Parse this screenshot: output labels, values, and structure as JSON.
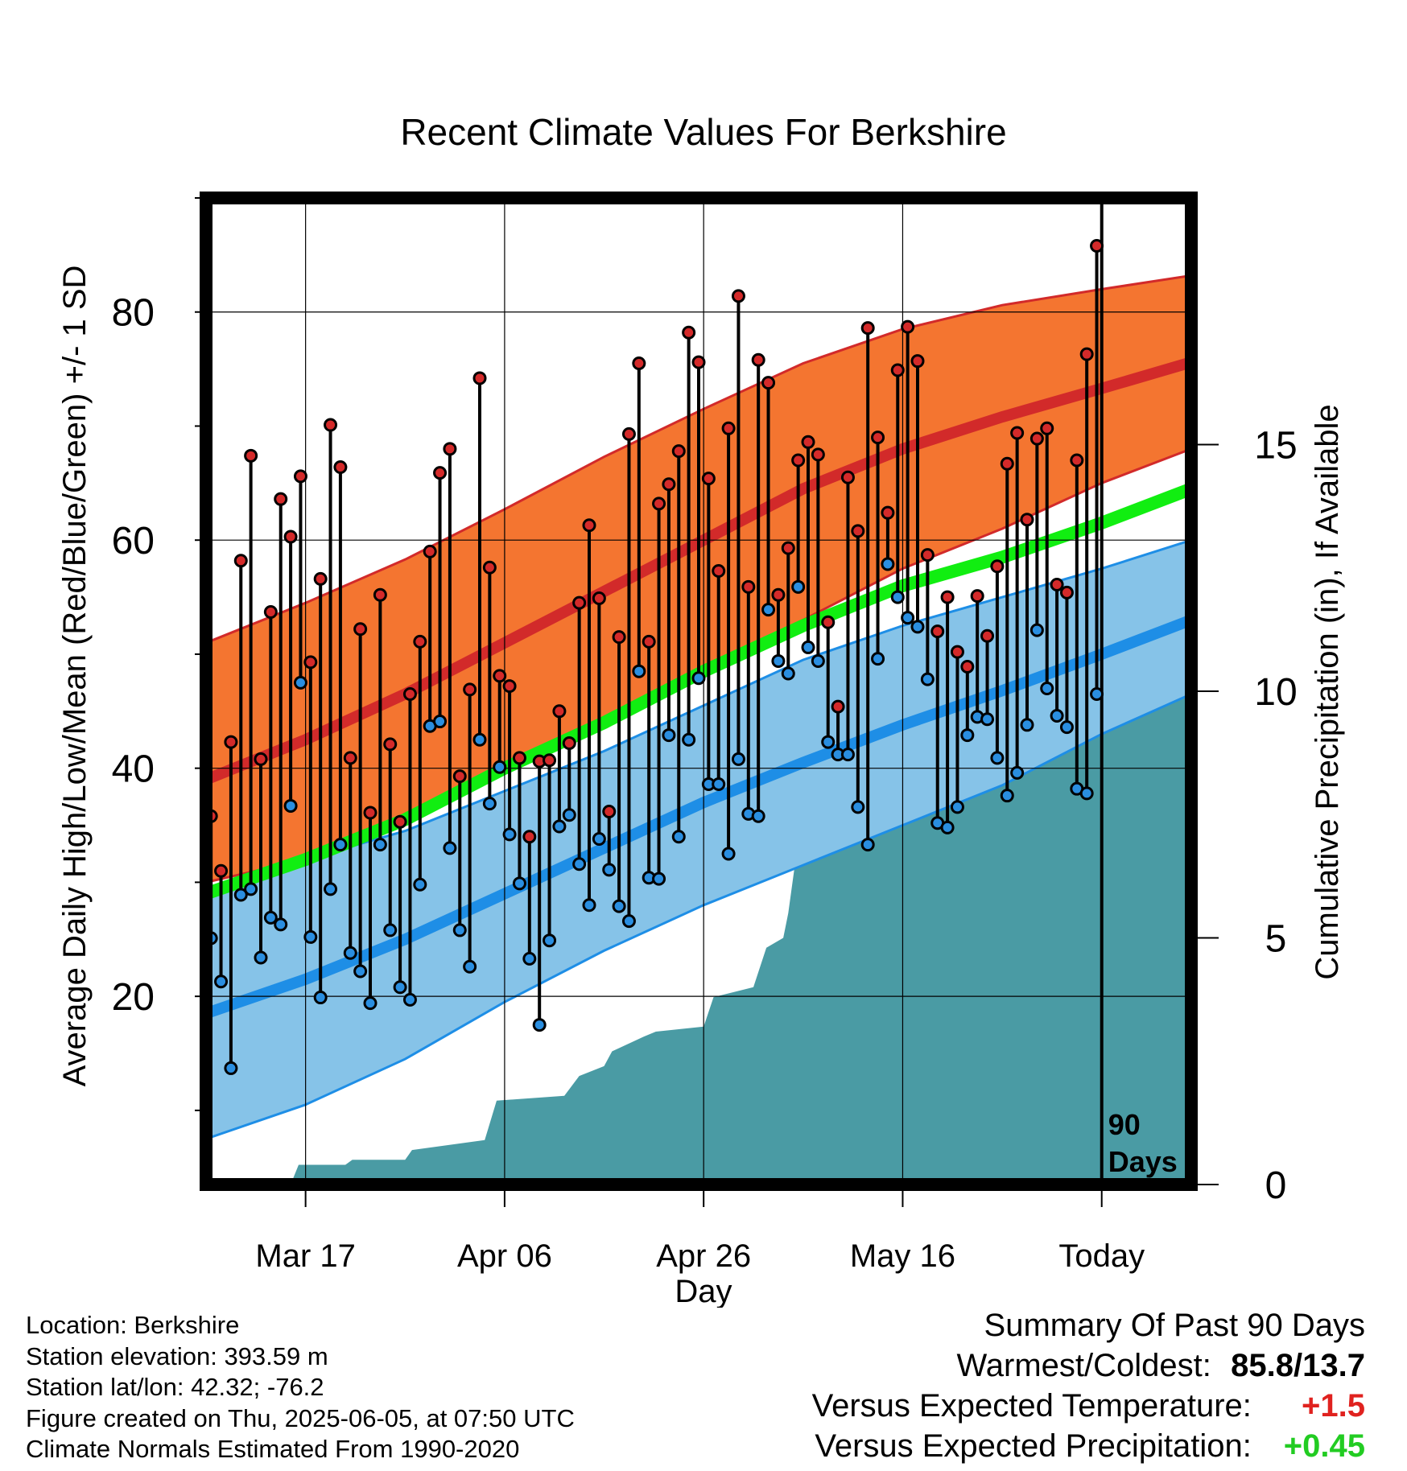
{
  "title": "Recent Climate Values For Berkshire",
  "colors": {
    "high_band": "#f47530",
    "high_mean": "#d22a2a",
    "low_band": "#86c3e8",
    "low_mean": "#1e8ee6",
    "mean_line": "#11ee11",
    "precip": "#4a9ba4",
    "high_marker": "#d42a2a",
    "low_marker": "#2a8ee0"
  },
  "chart_data": {
    "type": "line",
    "title": "Recent Climate Values For Berkshire",
    "xlabel": "Day",
    "ylabel": "Average Daily High/Low/Mean (Red/Blue/Green) +/- 1 SD",
    "y2label": "Cumulative Precipitation (in), If Available",
    "x_tick_labels": [
      "Mar 17",
      "Apr 06",
      "Apr 26",
      "May 16",
      "Today"
    ],
    "x_tick_days": [
      10,
      30,
      50,
      70,
      90
    ],
    "xlim": [
      0,
      99
    ],
    "ylim": [
      3.5,
      90
    ],
    "y_ticks": [
      20,
      40,
      60,
      80
    ],
    "y2lim": [
      0,
      20
    ],
    "y2_ticks": [
      0,
      5,
      10,
      15
    ],
    "today_day": 90,
    "today_label": [
      "90",
      "Days"
    ],
    "normals": {
      "day": [
        0,
        10,
        20,
        30,
        40,
        50,
        60,
        70,
        80,
        90,
        99
      ],
      "high_mean": [
        39.0,
        42.5,
        46.5,
        51.0,
        55.5,
        60.0,
        64.5,
        68.0,
        70.8,
        73.3,
        75.6
      ],
      "high_sd_upper": [
        51.0,
        54.5,
        58.3,
        62.7,
        67.3,
        71.5,
        75.5,
        78.5,
        80.6,
        82.0,
        83.2
      ],
      "high_sd_lower": [
        30.0,
        32.0,
        35.5,
        40.0,
        44.0,
        48.5,
        53.0,
        57.5,
        61.0,
        65.0,
        68.0
      ],
      "mean": [
        29.0,
        32.0,
        35.5,
        40.0,
        44.0,
        48.5,
        52.5,
        56.0,
        58.5,
        61.5,
        64.5
      ],
      "low_mean": [
        18.5,
        21.5,
        25.0,
        29.0,
        33.0,
        37.0,
        40.5,
        43.8,
        46.8,
        50.0,
        53.0
      ],
      "low_sd_upper": [
        29.5,
        32.0,
        34.5,
        38.0,
        41.5,
        45.5,
        49.5,
        52.5,
        55.0,
        57.5,
        60.0
      ],
      "low_sd_lower": [
        7.5,
        10.5,
        14.5,
        19.5,
        24.0,
        28.0,
        31.5,
        35.0,
        38.5,
        43.0,
        46.5
      ]
    },
    "daily": {
      "high": [
        35.8,
        31.0,
        42.3,
        58.2,
        67.4,
        40.8,
        53.7,
        63.6,
        60.3,
        65.6,
        49.3,
        56.6,
        70.1,
        66.4,
        40.9,
        52.2,
        36.1,
        55.2,
        42.1,
        35.3,
        46.5,
        51.1,
        59.0,
        65.9,
        68.0,
        39.3,
        46.9,
        74.2,
        57.6,
        48.1,
        47.2,
        40.9,
        34.0,
        40.6,
        40.7,
        45.0,
        42.2,
        54.5,
        61.3,
        54.9,
        36.2,
        51.5,
        69.3,
        75.5,
        51.1,
        63.2,
        64.9,
        67.8,
        78.2,
        75.6,
        65.4,
        57.3,
        69.8,
        81.4,
        55.9,
        75.8,
        73.8,
        55.2,
        59.3,
        67.0,
        68.6,
        67.5,
        52.8,
        45.4,
        65.5,
        60.8,
        78.6,
        69.0,
        62.4,
        74.9,
        78.7,
        75.7,
        58.7,
        52.0,
        55.0,
        50.2,
        48.9,
        55.1,
        51.6,
        57.7,
        66.7,
        69.4,
        61.8,
        68.9,
        69.8,
        56.1,
        55.4,
        67.0,
        76.3,
        85.8
      ],
      "low": [
        25.1,
        21.3,
        13.7,
        28.9,
        29.4,
        23.4,
        26.9,
        26.3,
        36.7,
        47.5,
        25.2,
        19.9,
        29.4,
        33.3,
        23.8,
        22.2,
        19.4,
        33.3,
        25.8,
        20.8,
        19.7,
        29.8,
        43.7,
        44.1,
        33.0,
        25.8,
        22.6,
        42.5,
        36.9,
        40.1,
        34.2,
        29.9,
        23.3,
        17.5,
        24.9,
        34.9,
        35.9,
        31.6,
        28.0,
        33.8,
        31.1,
        27.9,
        26.6,
        48.5,
        30.4,
        30.3,
        42.9,
        34.0,
        42.5,
        47.9,
        38.6,
        38.6,
        32.5,
        40.8,
        36.0,
        35.8,
        53.9,
        49.4,
        48.3,
        55.9,
        50.6,
        49.4,
        42.3,
        41.2,
        41.2,
        36.6,
        33.3,
        49.6,
        57.9,
        55.0,
        53.2,
        52.4,
        47.8,
        35.2,
        34.8,
        36.6,
        42.9,
        44.5,
        44.3,
        40.9,
        37.6,
        39.6,
        43.8,
        52.1,
        47.0,
        44.6,
        43.6,
        38.2,
        37.8,
        46.5
      ]
    },
    "precip_cumulative": {
      "day": [
        0,
        8.5,
        9.3,
        14,
        14.7,
        20,
        20.7,
        28,
        29.2,
        36,
        37.5,
        40,
        40.8,
        44,
        45.2,
        50,
        51,
        55,
        56.3,
        58,
        58.5,
        60,
        60.6,
        66,
        67.3,
        70,
        71.5,
        74,
        75.5,
        76.2,
        78,
        79.5,
        82,
        84,
        86,
        99
      ],
      "inches": [
        0,
        0,
        0.4,
        0.4,
        0.5,
        0.5,
        0.7,
        0.9,
        1.7,
        1.8,
        2.2,
        2.4,
        2.7,
        3.0,
        3.1,
        3.2,
        3.8,
        4.0,
        4.8,
        5.0,
        5.5,
        7.7,
        7.8,
        8.0,
        8.2,
        8.2,
        8.4,
        8.6,
        9.0,
        9.5,
        9.8,
        10.4,
        10.5,
        10.6,
        10.7,
        10.7
      ]
    }
  },
  "footer": {
    "location": "Location: Berkshire",
    "elevation": "Station elevation: 393.59 m",
    "latlon": "Station lat/lon: 42.32; -76.2",
    "created": "Figure created on Thu, 2025-06-05, at 07:50 UTC",
    "normals": "Climate Normals Estimated From 1990-2020"
  },
  "summary": {
    "heading": "Summary Of Past 90 Days",
    "warmest_label": "Warmest/Coldest:",
    "warmest_value": "85.8/13.7",
    "temp_label": "Versus Expected Temperature:",
    "temp_value": "+1.5",
    "precip_label": "Versus Expected Precipitation:",
    "precip_value": "+0.45"
  }
}
